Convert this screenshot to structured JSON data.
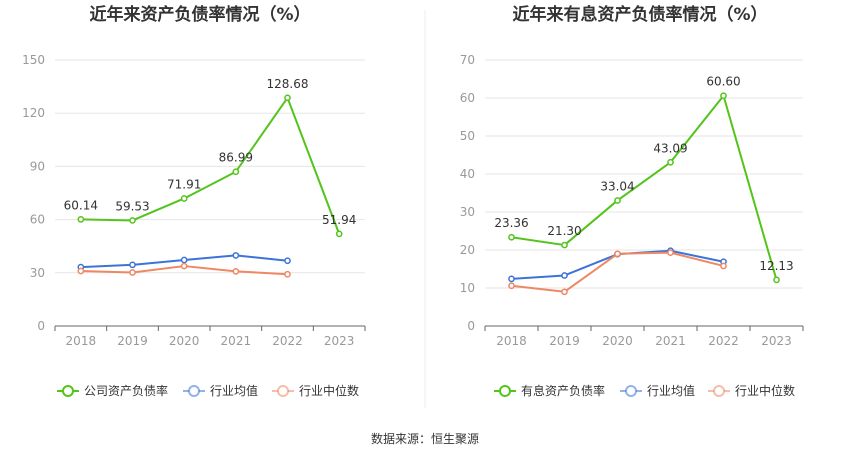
{
  "source": "数据来源：恒生聚源",
  "chart_data": [
    {
      "type": "line",
      "title": "近年来资产负债率情况（%）",
      "categories": [
        "2018",
        "2019",
        "2020",
        "2021",
        "2022",
        "2023"
      ],
      "ylim": [
        0,
        150
      ],
      "yticks": [
        "0",
        "30",
        "60",
        "90",
        "120",
        "150"
      ],
      "grid": true,
      "legend": "bottom",
      "series": [
        {
          "name": "公司资产负债率",
          "color": "#52c41a",
          "values": [
            60.14,
            59.53,
            71.91,
            86.99,
            128.68,
            51.94
          ],
          "labels": [
            "60.14",
            "59.53",
            "71.91",
            "86.99",
            "128.68",
            "51.94"
          ]
        },
        {
          "name": "行业均值",
          "color": "#3b73d9",
          "values": [
            33.2,
            34.5,
            37.2,
            39.8,
            36.8,
            null
          ]
        },
        {
          "name": "行业中位数",
          "color": "#ee8763",
          "values": [
            31.0,
            30.2,
            33.8,
            30.8,
            29.2,
            null
          ]
        }
      ]
    },
    {
      "type": "line",
      "title": "近年来有息资产负债率情况（%）",
      "categories": [
        "2018",
        "2019",
        "2020",
        "2021",
        "2022",
        "2023"
      ],
      "ylim": [
        0,
        70
      ],
      "yticks": [
        "0",
        "10",
        "20",
        "30",
        "40",
        "50",
        "60",
        "70"
      ],
      "grid": true,
      "legend": "bottom",
      "series": [
        {
          "name": "有息资产负债率",
          "color": "#52c41a",
          "values": [
            23.36,
            21.3,
            33.04,
            43.09,
            60.6,
            12.13
          ],
          "labels": [
            "23.36",
            "21.30",
            "33.04",
            "43.09",
            "60.60",
            "12.13"
          ]
        },
        {
          "name": "行业均值",
          "color": "#3b73d9",
          "values": [
            12.4,
            13.3,
            18.9,
            19.8,
            16.9,
            null
          ]
        },
        {
          "name": "行业中位数",
          "color": "#ee8763",
          "values": [
            10.6,
            9.0,
            19.0,
            19.3,
            15.8,
            null
          ]
        }
      ]
    }
  ]
}
